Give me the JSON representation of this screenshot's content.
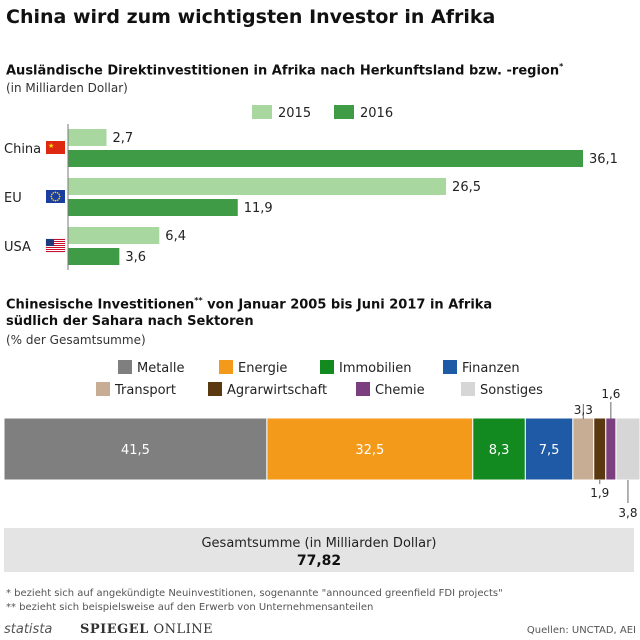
{
  "title": "China wird zum wichtigsten Investor in Afrika",
  "chart_data": [
    {
      "type": "bar",
      "orientation": "horizontal",
      "title": "Ausländische Direktinvestitionen in Afrika nach Herkunftsland bzw. -region",
      "title_marker": "*",
      "unit": "(in Milliarden Dollar)",
      "categories": [
        "China",
        "EU",
        "USA"
      ],
      "flag_icons": [
        "flag-china-icon",
        "flag-eu-icon",
        "flag-usa-icon"
      ],
      "series": [
        {
          "name": "2015",
          "values": [
            2.7,
            26.5,
            6.4
          ],
          "labels": [
            "2,7",
            "26,5",
            "6,4"
          ],
          "color": "#a8d7a0"
        },
        {
          "name": "2016",
          "values": [
            36.1,
            11.9,
            3.6
          ],
          "labels": [
            "36,1",
            "11,9",
            "3,6"
          ],
          "color": "#3f9b45"
        }
      ],
      "xlim": [
        0,
        36.1
      ],
      "legend_position": "top"
    },
    {
      "type": "bar",
      "stacked": true,
      "title": "Chinesische Investitionen",
      "title_marker": "**",
      "title_rest": " von Januar 2005 bis Juni 2017 in Afrika",
      "title_line2": "südlich der Sahara nach Sektoren",
      "unit": "(% der Gesamtsumme)",
      "segments": [
        {
          "name": "Metalle",
          "value": 41.5,
          "label": "41,5",
          "color": "#7f7f7f"
        },
        {
          "name": "Energie",
          "value": 32.5,
          "label": "32,5",
          "color": "#f39a1b"
        },
        {
          "name": "Immobilien",
          "value": 8.3,
          "label": "8,3",
          "color": "#138a1f"
        },
        {
          "name": "Finanzen",
          "value": 7.5,
          "label": "7,5",
          "color": "#1f5aa6"
        },
        {
          "name": "Transport",
          "value": 3.3,
          "label": "3,3",
          "color": "#c8ad95"
        },
        {
          "name": "Agrarwirtschaft",
          "value": 1.9,
          "label": "1,9",
          "color": "#5a3810"
        },
        {
          "name": "Chemie",
          "value": 1.6,
          "label": "1,6",
          "color": "#7b3f7f"
        },
        {
          "name": "Sonstiges",
          "value": 3.8,
          "label": "3,8",
          "color": "#d6d6d6"
        }
      ],
      "total_label": "Gesamtsumme (in Milliarden Dollar)",
      "total_value": "77,82",
      "legend_position": "top"
    }
  ],
  "footnotes": [
    "*   bezieht sich auf angekündigte Neuinvestitionen, sogenannte \"announced greenfield FDI projects\"",
    "** bezieht sich beispielsweise auf den Erwerb von Unternehmensanteilen"
  ],
  "brand": {
    "statista": "statista",
    "spiegel_bold": "SPIEGEL",
    "spiegel_rest": " ONLINE"
  },
  "sources": "Quellen: UNCTAD, AEI"
}
